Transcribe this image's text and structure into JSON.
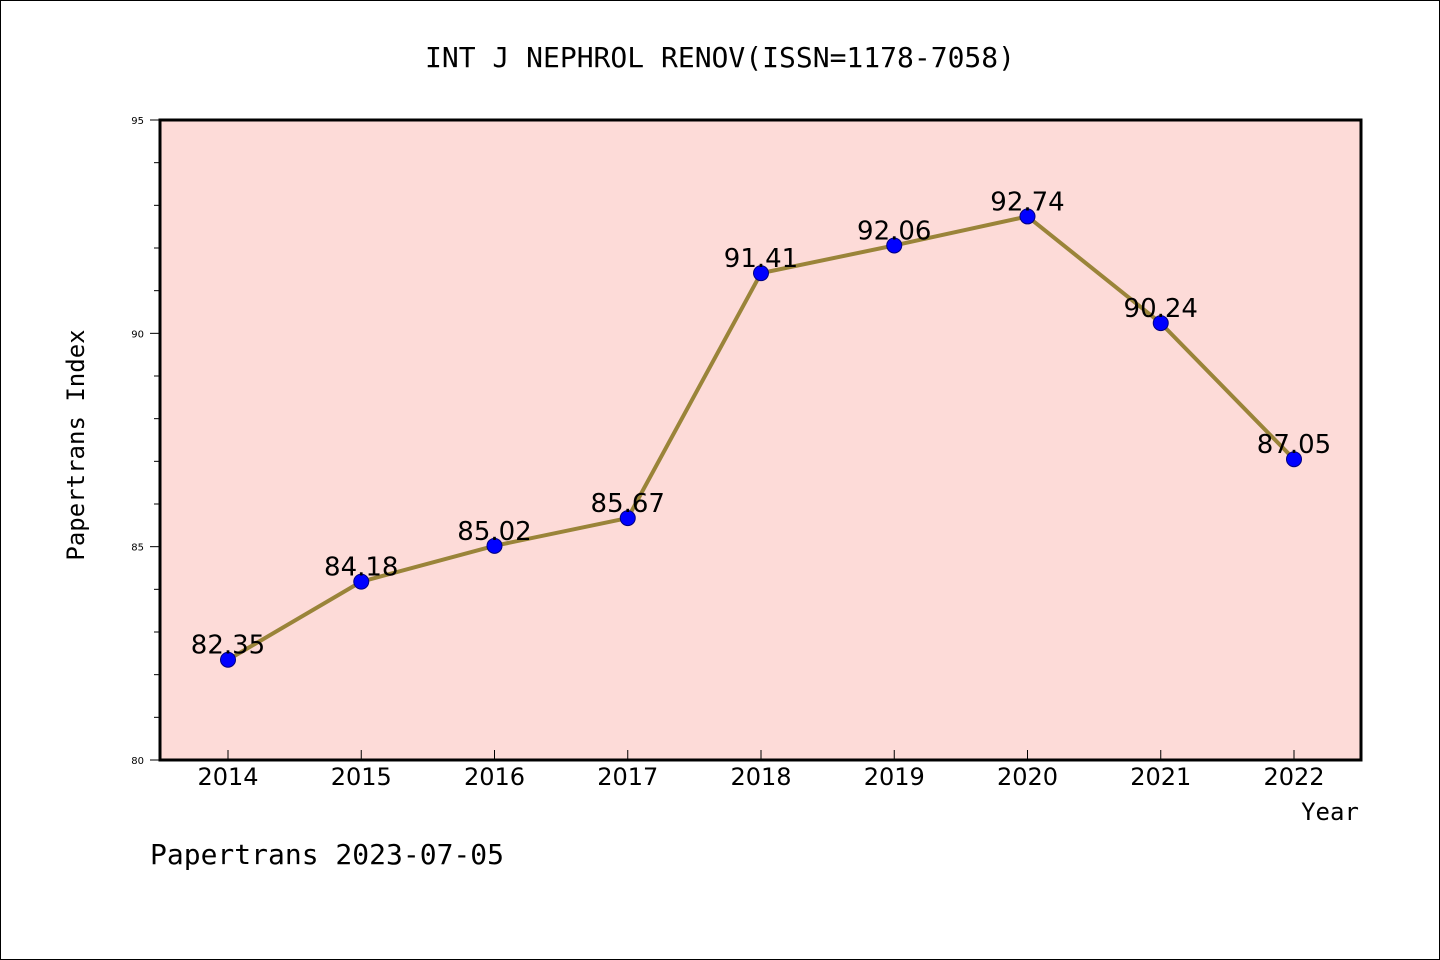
{
  "chart_data": {
    "type": "line",
    "title": "INT J NEPHROL RENOV(ISSN=1178-7058)",
    "xlabel": "Year",
    "ylabel": "Papertrans Index",
    "categories": [
      "2014",
      "2015",
      "2016",
      "2017",
      "2018",
      "2019",
      "2020",
      "2021",
      "2022"
    ],
    "series": [
      {
        "values": [
          82.35,
          84.18,
          85.02,
          85.67,
          91.41,
          92.06,
          92.74,
          90.24,
          87.05
        ],
        "data_labels": [
          "82.35",
          "84.18",
          "85.02",
          "85.67",
          "91.41",
          "92.06",
          "92.74",
          "90.24",
          "87.05"
        ]
      }
    ],
    "ylim": [
      80,
      95
    ],
    "yticks": [
      "80",
      "85",
      "90",
      "95"
    ],
    "grid": false,
    "colors": {
      "plot_background": "#fddbd8",
      "line": "#9a8439",
      "marker": "#0000ff",
      "marker_edge": "#000080",
      "axes": "#000000"
    }
  },
  "footer": "Papertrans 2023-07-05"
}
